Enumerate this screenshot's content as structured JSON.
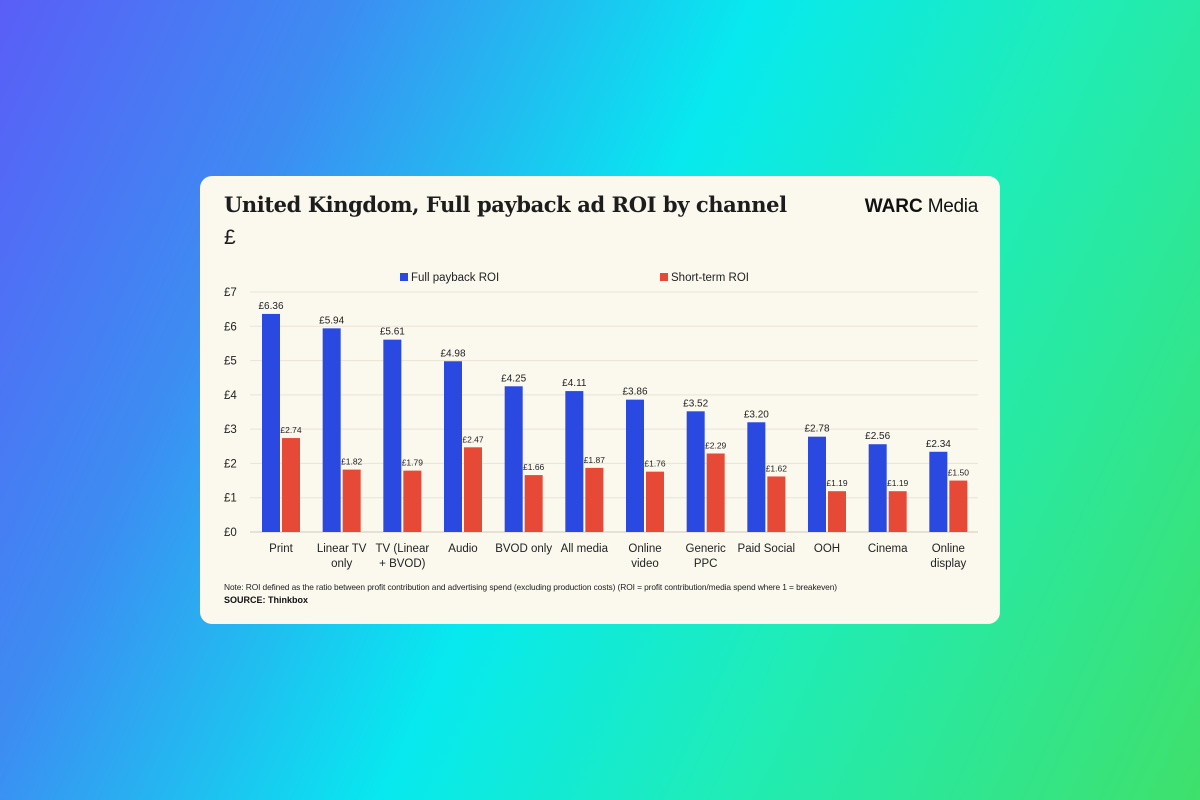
{
  "card": {
    "title": "United Kingdom, Full payback ad ROI by channel",
    "unit": "£",
    "logo_bold": "WARC",
    "logo_rest": "Media",
    "note": "Note: ROI defined as the ratio between profit contribution and advertising spend (excluding production costs) (ROI = profit contribution/media spend where 1 = breakeven)",
    "source_label": "SOURCE:",
    "source_name": "Thinkbox"
  },
  "chart_data": {
    "type": "bar",
    "categories": [
      [
        "Print"
      ],
      [
        "Linear TV",
        "only"
      ],
      [
        "TV (Linear",
        "+ BVOD)"
      ],
      [
        "Audio"
      ],
      [
        "BVOD only"
      ],
      [
        "All media"
      ],
      [
        "Online",
        "video"
      ],
      [
        "Generic",
        "PPC"
      ],
      [
        "Paid Social"
      ],
      [
        "OOH"
      ],
      [
        "Cinema"
      ],
      [
        "Online",
        "display"
      ]
    ],
    "series": [
      {
        "name": "Full payback ROI",
        "color": "#2a49e0",
        "values": [
          6.36,
          5.94,
          5.61,
          4.98,
          4.25,
          4.11,
          3.86,
          3.52,
          3.2,
          2.78,
          2.56,
          2.34
        ],
        "labels": [
          "£6.36",
          "£5.94",
          "£5.61",
          "£4.98",
          "£4.25",
          "£4.11",
          "£3.86",
          "£3.52",
          "£3.20",
          "£2.78",
          "£2.56",
          "£2.34"
        ]
      },
      {
        "name": "Short-term ROI",
        "color": "#e64a37",
        "values": [
          2.74,
          1.82,
          1.79,
          2.47,
          1.66,
          1.87,
          1.76,
          2.29,
          1.62,
          1.19,
          1.19,
          1.5
        ],
        "labels": [
          "£2.74",
          "£1.82",
          "£1.79",
          "£2.47",
          "£1.66",
          "£1.87",
          "£1.76",
          "£2.29",
          "£1.62",
          "£1.19",
          "£1.19",
          "£1.50"
        ]
      }
    ],
    "yticks": [
      "£0",
      "£1",
      "£2",
      "£3",
      "£4",
      "£5",
      "£6",
      "£7"
    ],
    "ylim": [
      0,
      7
    ],
    "grid": true,
    "legend_position": "top"
  }
}
